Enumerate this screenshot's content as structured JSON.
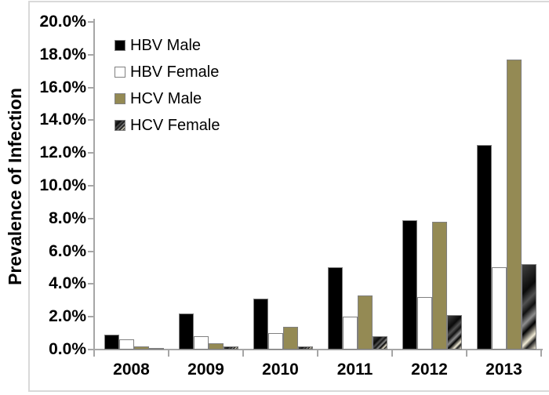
{
  "frame_color": "#d9d9d9",
  "axis_color": "#a6a6a6",
  "bar_border_color": "#808080",
  "chart_data": {
    "type": "bar",
    "title": "",
    "xlabel": "",
    "ylabel": "Prevalence of Infection",
    "categories": [
      "2008",
      "2009",
      "2010",
      "2011",
      "2012",
      "2013"
    ],
    "series": [
      {
        "name": "HBV Male",
        "fill": "#000000",
        "values": [
          0.9,
          2.2,
          3.1,
          5.0,
          7.9,
          12.5
        ]
      },
      {
        "name": "HBV Female",
        "fill": "#ffffff",
        "values": [
          0.6,
          0.8,
          1.0,
          2.0,
          3.2,
          5.0
        ]
      },
      {
        "name": "HCV Male",
        "fill": "#948A54",
        "values": [
          0.2,
          0.4,
          1.4,
          3.3,
          7.8,
          17.7
        ]
      },
      {
        "name": "HCV Female",
        "fill": "texture",
        "values": [
          0.05,
          0.2,
          0.2,
          0.8,
          2.1,
          5.2
        ]
      }
    ],
    "ylim": [
      0,
      20
    ],
    "ytick_step": 2,
    "ytick_labels": [
      "0.0%",
      "2.0%",
      "4.0%",
      "6.0%",
      "8.0%",
      "10.0%",
      "12.0%",
      "14.0%",
      "16.0%",
      "18.0%",
      "20.0%"
    ],
    "legend_position": "upper-left-inside",
    "grid": false
  }
}
